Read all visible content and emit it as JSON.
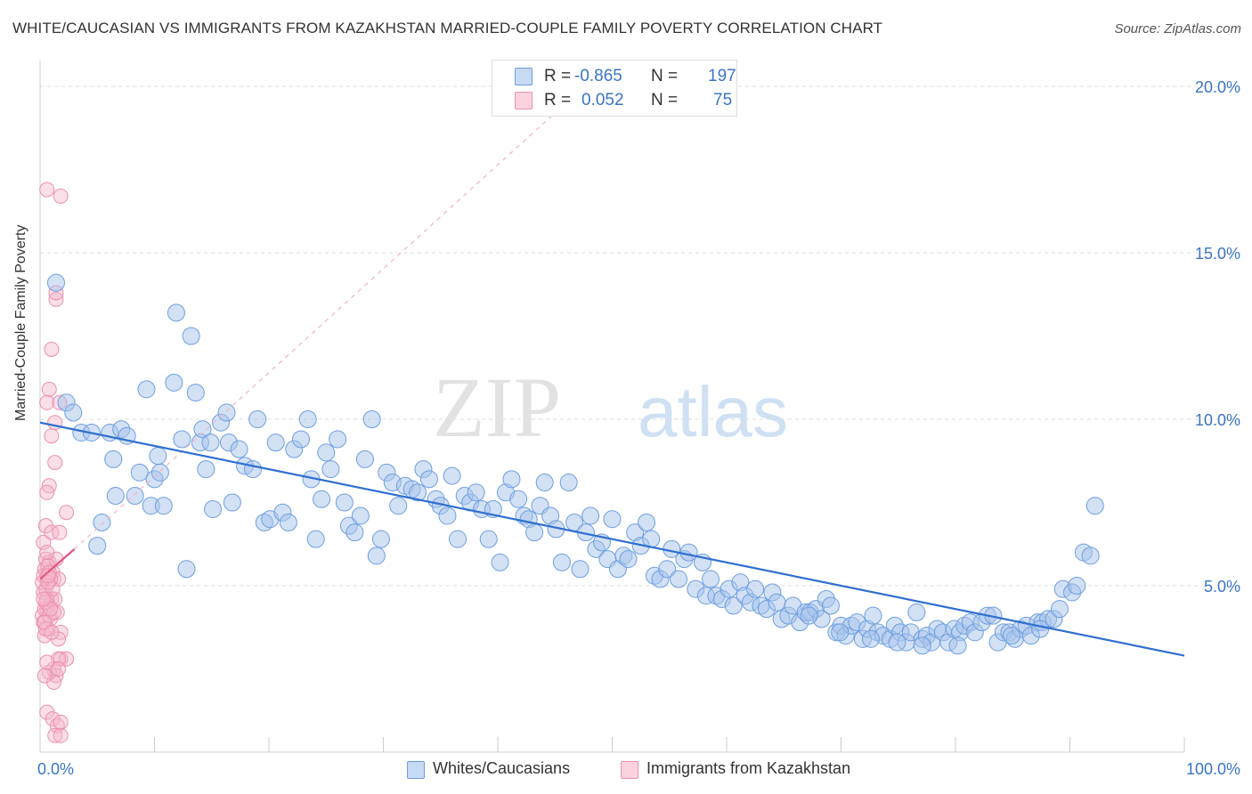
{
  "title": "WHITE/CAUCASIAN VS IMMIGRANTS FROM KAZAKHSTAN MARRIED-COUPLE FAMILY POVERTY CORRELATION CHART",
  "source": "Source: ZipAtlas.com",
  "watermark": {
    "zip": "ZIP",
    "atlas": "atlas"
  },
  "colors": {
    "blue": "#a7c4ec",
    "blue_stroke": "#6d9ee0",
    "blue_line": "#2f6fd0",
    "pink": "#f5b8cb",
    "pink_stroke": "#ec8fab",
    "pink_line": "#e8557f",
    "axis_text": "#3a75c4",
    "grid": "#dddddd"
  },
  "legend": {
    "rows": [
      {
        "r_label": "R =",
        "r_value": "-0.865",
        "n_label": "N =",
        "n_value": "197",
        "color": "#a7c4ec"
      },
      {
        "r_label": "R =",
        "r_value": "0.052",
        "n_label": "N =",
        "n_value": "75",
        "color": "#f5b8cb"
      }
    ]
  },
  "bottom_legend": {
    "series1": "Whites/Caucasians",
    "series2": "Immigrants from Kazakhstan"
  },
  "chart_data": {
    "type": "scatter",
    "title": "WHITE/CAUCASIAN VS IMMIGRANTS FROM KAZAKHSTAN MARRIED-COUPLE FAMILY POVERTY CORRELATION CHART",
    "xlabel": "",
    "ylabel": "Married-Couple Family Poverty",
    "xlim": [
      0,
      100
    ],
    "ylim": [
      0,
      20
    ],
    "x_tick_labels": [
      "0.0%",
      "100.0%"
    ],
    "y_ticks": [
      5,
      10,
      15,
      20
    ],
    "y_tick_labels": [
      "5.0%",
      "10.0%",
      "15.0%",
      "20.0%"
    ],
    "grid": true,
    "legend_position": "top-center",
    "series": [
      {
        "name": "Whites/Caucasians",
        "r": -0.865,
        "n": 197,
        "trend": {
          "x": [
            0,
            100
          ],
          "y": [
            9.9,
            2.9
          ]
        },
        "points": [
          [
            1.4,
            14.1
          ],
          [
            2.3,
            10.5
          ],
          [
            2.9,
            10.2
          ],
          [
            3.6,
            9.6
          ],
          [
            4.5,
            9.6
          ],
          [
            5,
            6.2
          ],
          [
            5.4,
            6.9
          ],
          [
            6.1,
            9.6
          ],
          [
            6.4,
            8.8
          ],
          [
            6.6,
            7.7
          ],
          [
            7.1,
            9.7
          ],
          [
            7.6,
            9.5
          ],
          [
            8.3,
            7.7
          ],
          [
            8.7,
            8.4
          ],
          [
            9.3,
            10.9
          ],
          [
            9.7,
            7.4
          ],
          [
            10,
            8.2
          ],
          [
            10.3,
            8.9
          ],
          [
            10.5,
            8.4
          ],
          [
            10.8,
            7.4
          ],
          [
            11.7,
            11.1
          ],
          [
            11.9,
            13.2
          ],
          [
            12.4,
            9.4
          ],
          [
            12.8,
            5.5
          ],
          [
            13.2,
            12.5
          ],
          [
            13.6,
            10.8
          ],
          [
            14,
            9.3
          ],
          [
            14.2,
            9.7
          ],
          [
            14.5,
            8.5
          ],
          [
            14.9,
            9.3
          ],
          [
            15.1,
            7.3
          ],
          [
            15.8,
            9.9
          ],
          [
            16.3,
            10.2
          ],
          [
            16.5,
            9.3
          ],
          [
            16.8,
            7.5
          ],
          [
            17.4,
            9.1
          ],
          [
            17.9,
            8.6
          ],
          [
            18.6,
            8.5
          ],
          [
            19,
            10
          ],
          [
            19.6,
            6.9
          ],
          [
            20.1,
            7
          ],
          [
            20.6,
            9.3
          ],
          [
            21.2,
            7.2
          ],
          [
            21.7,
            6.9
          ],
          [
            22.2,
            9.1
          ],
          [
            22.8,
            9.4
          ],
          [
            23.4,
            10
          ],
          [
            23.7,
            8.2
          ],
          [
            24.1,
            6.4
          ],
          [
            24.6,
            7.6
          ],
          [
            25,
            9
          ],
          [
            25.4,
            8.5
          ],
          [
            26,
            9.4
          ],
          [
            26.6,
            7.5
          ],
          [
            27,
            6.8
          ],
          [
            27.5,
            6.6
          ],
          [
            28,
            7.1
          ],
          [
            28.4,
            8.8
          ],
          [
            29,
            10
          ],
          [
            29.4,
            5.9
          ],
          [
            29.8,
            6.4
          ],
          [
            30.3,
            8.4
          ],
          [
            30.8,
            8.1
          ],
          [
            31.3,
            7.4
          ],
          [
            31.9,
            8
          ],
          [
            32.5,
            7.9
          ],
          [
            33,
            7.8
          ],
          [
            33.5,
            8.5
          ],
          [
            34,
            8.2
          ],
          [
            34.6,
            7.6
          ],
          [
            35,
            7.4
          ],
          [
            35.6,
            7.1
          ],
          [
            36,
            8.3
          ],
          [
            36.5,
            6.4
          ],
          [
            37.1,
            7.7
          ],
          [
            37.6,
            7.5
          ],
          [
            38.1,
            7.8
          ],
          [
            38.6,
            7.3
          ],
          [
            39.2,
            6.4
          ],
          [
            39.6,
            7.3
          ],
          [
            40.2,
            5.7
          ],
          [
            40.7,
            7.8
          ],
          [
            41.2,
            8.2
          ],
          [
            41.8,
            7.6
          ],
          [
            42.3,
            7.1
          ],
          [
            42.7,
            7
          ],
          [
            43.2,
            6.6
          ],
          [
            43.7,
            7.4
          ],
          [
            44.1,
            8.1
          ],
          [
            44.6,
            7.1
          ],
          [
            45.1,
            6.7
          ],
          [
            45.6,
            5.7
          ],
          [
            46.2,
            8.1
          ],
          [
            46.7,
            6.9
          ],
          [
            47.2,
            5.5
          ],
          [
            47.7,
            6.6
          ],
          [
            48.1,
            7.1
          ],
          [
            48.6,
            6.1
          ],
          [
            49.1,
            6.3
          ],
          [
            49.6,
            5.8
          ],
          [
            50,
            7
          ],
          [
            50.5,
            5.5
          ],
          [
            51,
            5.9
          ],
          [
            51.4,
            5.8
          ],
          [
            52,
            6.6
          ],
          [
            52.5,
            6.2
          ],
          [
            53,
            6.9
          ],
          [
            53.4,
            6.4
          ],
          [
            53.7,
            5.3
          ],
          [
            54.2,
            5.2
          ],
          [
            54.8,
            5.5
          ],
          [
            55.2,
            6.1
          ],
          [
            55.8,
            5.2
          ],
          [
            56.3,
            5.8
          ],
          [
            56.7,
            6
          ],
          [
            57.3,
            4.9
          ],
          [
            57.9,
            5.7
          ],
          [
            58.2,
            4.7
          ],
          [
            58.6,
            5.2
          ],
          [
            59.1,
            4.7
          ],
          [
            59.6,
            4.6
          ],
          [
            60.2,
            4.9
          ],
          [
            60.6,
            4.4
          ],
          [
            61.2,
            5.1
          ],
          [
            61.6,
            4.7
          ],
          [
            62.1,
            4.5
          ],
          [
            62.5,
            4.9
          ],
          [
            63,
            4.4
          ],
          [
            63.5,
            4.3
          ],
          [
            64,
            4.8
          ],
          [
            64.4,
            4.5
          ],
          [
            64.8,
            4
          ],
          [
            65.4,
            4.1
          ],
          [
            65.8,
            4.4
          ],
          [
            66.4,
            3.9
          ],
          [
            66.9,
            4.2
          ],
          [
            67.3,
            4.2
          ],
          [
            67.8,
            4.3
          ],
          [
            68.3,
            4
          ],
          [
            68.7,
            4.6
          ],
          [
            69.1,
            4.4
          ],
          [
            69.6,
            3.6
          ],
          [
            70,
            3.8
          ],
          [
            70.4,
            3.5
          ],
          [
            70.9,
            3.8
          ],
          [
            71.4,
            3.9
          ],
          [
            71.9,
            3.4
          ],
          [
            72.3,
            3.7
          ],
          [
            72.8,
            4.1
          ],
          [
            73.2,
            3.6
          ],
          [
            73.7,
            3.5
          ],
          [
            74.3,
            3.4
          ],
          [
            74.7,
            3.8
          ],
          [
            75.2,
            3.6
          ],
          [
            75.7,
            3.3
          ],
          [
            76.1,
            3.6
          ],
          [
            76.6,
            4.2
          ],
          [
            77.1,
            3.4
          ],
          [
            77.5,
            3.5
          ],
          [
            77.9,
            3.3
          ],
          [
            78.4,
            3.7
          ],
          [
            78.9,
            3.6
          ],
          [
            79.4,
            3.3
          ],
          [
            79.9,
            3.7
          ],
          [
            80.4,
            3.6
          ],
          [
            80.8,
            3.8
          ],
          [
            81.3,
            3.9
          ],
          [
            81.7,
            3.6
          ],
          [
            82.3,
            3.9
          ],
          [
            82.8,
            4.1
          ],
          [
            83.3,
            4.1
          ],
          [
            83.7,
            3.3
          ],
          [
            84.2,
            3.6
          ],
          [
            84.7,
            3.6
          ],
          [
            85.2,
            3.4
          ],
          [
            85.7,
            3.7
          ],
          [
            86.2,
            3.8
          ],
          [
            86.6,
            3.5
          ],
          [
            87.2,
            3.9
          ],
          [
            87.6,
            3.9
          ],
          [
            88.1,
            4
          ],
          [
            88.6,
            4
          ],
          [
            89.1,
            4.3
          ],
          [
            89.4,
            4.9
          ],
          [
            90.2,
            4.8
          ],
          [
            90.6,
            5
          ],
          [
            91.2,
            6
          ],
          [
            91.8,
            5.9
          ],
          [
            92.2,
            7.4
          ],
          [
            84.9,
            3.5
          ],
          [
            87.4,
            3.7
          ],
          [
            80.2,
            3.2
          ],
          [
            77.1,
            3.2
          ],
          [
            74.9,
            3.3
          ],
          [
            72.6,
            3.4
          ],
          [
            69.9,
            3.6
          ],
          [
            67.2,
            4.1
          ]
        ]
      },
      {
        "name": "Immigrants from Kazakhstan",
        "r": 0.052,
        "n": 75,
        "trend": {
          "x": [
            0,
            3
          ],
          "y": [
            5.2,
            6.1
          ]
        },
        "points": [
          [
            0.3,
            6.3
          ],
          [
            0.5,
            4.9
          ],
          [
            0.4,
            5.5
          ],
          [
            0.6,
            4.3
          ],
          [
            0.2,
            5.1
          ],
          [
            0.7,
            3.7
          ],
          [
            0.3,
            3.9
          ],
          [
            0.8,
            4.4
          ],
          [
            0.5,
            5.8
          ],
          [
            1,
            4.6
          ],
          [
            0.2,
            4.1
          ],
          [
            0.4,
            3.5
          ],
          [
            0.6,
            5.3
          ],
          [
            0.9,
            4
          ],
          [
            0.3,
            4.8
          ],
          [
            0.5,
            6.8
          ],
          [
            0.8,
            5.7
          ],
          [
            1.1,
            5.4
          ],
          [
            1.3,
            4.6
          ],
          [
            1.5,
            4.2
          ],
          [
            1.2,
            5.2
          ],
          [
            1,
            6.6
          ],
          [
            1.4,
            5.8
          ],
          [
            1.6,
            5.2
          ],
          [
            1.8,
            3.6
          ],
          [
            0.6,
            16.9
          ],
          [
            1.8,
            16.7
          ],
          [
            1.4,
            13.6
          ],
          [
            1.4,
            13.8
          ],
          [
            1,
            12.1
          ],
          [
            0.8,
            10.9
          ],
          [
            0.6,
            10.5
          ],
          [
            1.7,
            10.5
          ],
          [
            1.3,
            9.9
          ],
          [
            1,
            9.5
          ],
          [
            1.3,
            8.7
          ],
          [
            0.8,
            8
          ],
          [
            0.6,
            7.8
          ],
          [
            2.3,
            7.2
          ],
          [
            1.7,
            6.6
          ],
          [
            0.3,
            5.3
          ],
          [
            0.7,
            5.6
          ],
          [
            0.9,
            5.2
          ],
          [
            1.1,
            4.9
          ],
          [
            0.4,
            4.3
          ],
          [
            0.6,
            4.6
          ],
          [
            0.8,
            4.1
          ],
          [
            0.5,
            3.7
          ],
          [
            1.6,
            3.4
          ],
          [
            1.8,
            2.8
          ],
          [
            2.3,
            2.8
          ],
          [
            1.6,
            2.8
          ],
          [
            1.2,
            2.5
          ],
          [
            1.4,
            2.3
          ],
          [
            1.2,
            2.1
          ],
          [
            0.8,
            2.4
          ],
          [
            0.4,
            2.3
          ],
          [
            0.6,
            2.7
          ],
          [
            1.6,
            2.5
          ],
          [
            0.6,
            1.2
          ],
          [
            1.1,
            1
          ],
          [
            1.5,
            0.8
          ],
          [
            1.8,
            0.9
          ],
          [
            1.3,
            0.5
          ],
          [
            1.8,
            0.5
          ],
          [
            0.7,
            5.1
          ],
          [
            0.5,
            4.5
          ],
          [
            0.8,
            5.4
          ],
          [
            1.2,
            4.2
          ],
          [
            0.4,
            3.9
          ],
          [
            0.9,
            4.3
          ],
          [
            0.6,
            6
          ],
          [
            0.3,
            4.6
          ],
          [
            1,
            3.6
          ],
          [
            0.7,
            5.3
          ]
        ]
      }
    ]
  }
}
